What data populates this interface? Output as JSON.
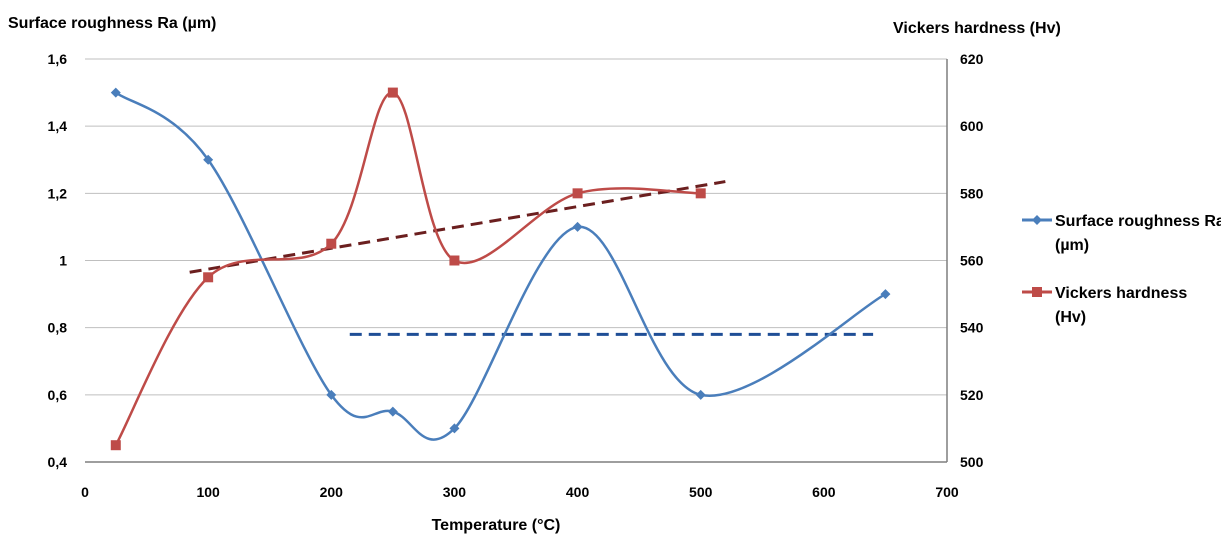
{
  "chart_data": {
    "type": "line",
    "title": "",
    "xlabel": "Temperature (°C)",
    "ylabel_left": "Surface roughness Ra (µm)",
    "ylabel_right": "Vickers hardness (Hv)",
    "xlim": [
      0,
      700
    ],
    "ylim_left": [
      0.4,
      1.6
    ],
    "ylim_right": [
      500,
      620
    ],
    "x_ticks": [
      "0",
      "100",
      "200",
      "300",
      "400",
      "500",
      "600",
      "700"
    ],
    "y_left_ticks": [
      "0,4",
      "0,6",
      "0,8",
      "1",
      "1,2",
      "1,4",
      "1,6"
    ],
    "y_right_ticks": [
      "500",
      "520",
      "540",
      "560",
      "580",
      "600",
      "620"
    ],
    "grid": true,
    "legend_position": "right",
    "series": [
      {
        "name": "Surface roughness Ra (µm)",
        "axis": "left",
        "color": "#4a7ebb",
        "marker": "diamond",
        "x": [
          25,
          100,
          200,
          250,
          300,
          400,
          500,
          650
        ],
        "y": [
          1.5,
          1.3,
          0.6,
          0.55,
          0.5,
          1.1,
          0.6,
          0.9
        ]
      },
      {
        "name": "Vickers hardness (Hv)",
        "axis": "right",
        "color": "#be4b48",
        "marker": "square",
        "x": [
          25,
          100,
          200,
          250,
          300,
          400,
          500
        ],
        "y": [
          505,
          555,
          565,
          610,
          560,
          580,
          580
        ]
      }
    ],
    "trendlines": [
      {
        "series": "Surface roughness Ra (µm)",
        "axis": "left",
        "color": "#1f4e96",
        "style": "dashed",
        "x": [
          215,
          640
        ],
        "y": [
          0.78,
          0.78
        ]
      },
      {
        "series": "Vickers hardness (Hv)",
        "axis": "right",
        "color": "#6b1f1f",
        "style": "dashed",
        "x": [
          85,
          520
        ],
        "y": [
          556.5,
          583.5
        ]
      }
    ]
  }
}
